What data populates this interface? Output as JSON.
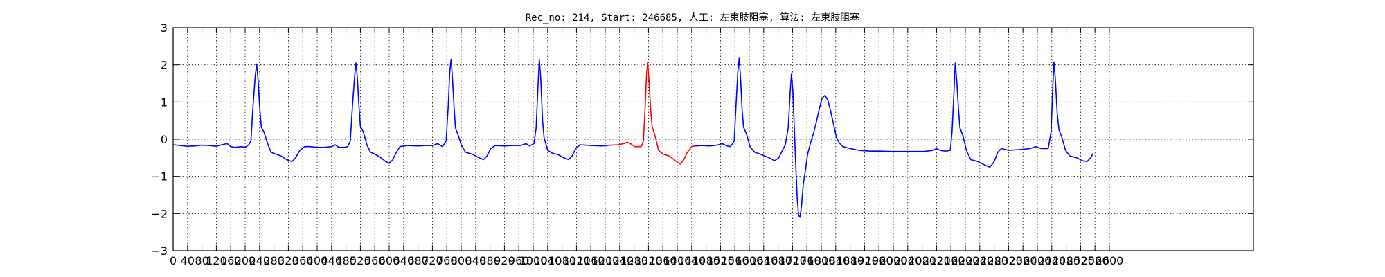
{
  "chart_data": {
    "type": "line",
    "title": "Rec_no: 214, Start: 246685, 人工: 左束肢阻塞, 算法: 左束肢阻塞",
    "xlabel": "",
    "ylabel": "",
    "xlim": [
      0,
      3000
    ],
    "ylim": [
      -3,
      3
    ],
    "grid": true,
    "x_ticks": [
      0,
      40,
      80,
      120,
      160,
      200,
      240,
      280,
      320,
      360,
      400,
      440,
      480,
      520,
      560,
      600,
      640,
      680,
      720,
      760,
      800,
      840,
      880,
      920,
      960,
      1000,
      1040,
      1080,
      1120,
      1160,
      1200,
      1240,
      1280,
      1320,
      1360,
      1400,
      1440,
      1480,
      1520,
      1560,
      1600,
      1640,
      1680,
      1720,
      1760,
      1800,
      1840,
      1880,
      1920,
      1960,
      2000,
      2040,
      2080,
      2120,
      2160,
      2200,
      2240,
      2280,
      2320,
      2360,
      2400,
      2440,
      2480,
      2520,
      2560,
      2600
    ],
    "y_ticks": [
      -3,
      -2,
      -1,
      0,
      1,
      2,
      3
    ],
    "y_tick_labels": [
      "−3",
      "−2",
      "−1",
      "0",
      "1",
      "2",
      "3"
    ],
    "series": [
      {
        "color": "#0000ff",
        "points": [
          [
            0,
            -0.15
          ],
          [
            20,
            -0.17
          ],
          [
            40,
            -0.19
          ],
          [
            60,
            -0.18
          ],
          [
            80,
            -0.16
          ],
          [
            100,
            -0.17
          ],
          [
            120,
            -0.19
          ],
          [
            135,
            -0.15
          ],
          [
            150,
            -0.12
          ],
          [
            160,
            -0.2
          ],
          [
            170,
            -0.22
          ],
          [
            180,
            -0.21
          ],
          [
            190,
            -0.2
          ],
          [
            200,
            -0.22
          ],
          [
            210,
            -0.15
          ],
          [
            216,
            -0.05
          ],
          [
            222,
            0.9
          ],
          [
            228,
            1.7
          ],
          [
            232,
            2.02
          ],
          [
            236,
            1.6
          ],
          [
            240,
            0.9
          ],
          [
            245,
            0.32
          ],
          [
            252,
            0.2
          ],
          [
            262,
            -0.1
          ],
          [
            272,
            -0.35
          ],
          [
            285,
            -0.4
          ],
          [
            300,
            -0.45
          ],
          [
            315,
            -0.55
          ],
          [
            330,
            -0.6
          ],
          [
            340,
            -0.5
          ],
          [
            352,
            -0.3
          ],
          [
            365,
            -0.2
          ],
          [
            380,
            -0.2
          ],
          [
            400,
            -0.22
          ],
          [
            420,
            -0.22
          ],
          [
            440,
            -0.2
          ],
          [
            450,
            -0.15
          ],
          [
            460,
            -0.22
          ],
          [
            475,
            -0.22
          ],
          [
            485,
            -0.2
          ],
          [
            492,
            -0.05
          ],
          [
            498,
            0.9
          ],
          [
            504,
            1.7
          ],
          [
            508,
            2.05
          ],
          [
            512,
            1.6
          ],
          [
            516,
            0.9
          ],
          [
            520,
            0.35
          ],
          [
            528,
            0.2
          ],
          [
            538,
            -0.15
          ],
          [
            548,
            -0.35
          ],
          [
            560,
            -0.4
          ],
          [
            575,
            -0.48
          ],
          [
            590,
            -0.6
          ],
          [
            600,
            -0.65
          ],
          [
            610,
            -0.55
          ],
          [
            620,
            -0.35
          ],
          [
            630,
            -0.2
          ],
          [
            650,
            -0.17
          ],
          [
            680,
            -0.18
          ],
          [
            700,
            -0.17
          ],
          [
            720,
            -0.17
          ],
          [
            735,
            -0.12
          ],
          [
            748,
            -0.2
          ],
          [
            758,
            -0.05
          ],
          [
            764,
            0.9
          ],
          [
            768,
            1.8
          ],
          [
            772,
            2.15
          ],
          [
            776,
            1.6
          ],
          [
            780,
            0.9
          ],
          [
            784,
            0.3
          ],
          [
            792,
            0.1
          ],
          [
            800,
            -0.15
          ],
          [
            812,
            -0.35
          ],
          [
            830,
            -0.4
          ],
          [
            850,
            -0.5
          ],
          [
            862,
            -0.55
          ],
          [
            872,
            -0.45
          ],
          [
            882,
            -0.25
          ],
          [
            895,
            -0.17
          ],
          [
            920,
            -0.18
          ],
          [
            945,
            -0.17
          ],
          [
            965,
            -0.17
          ],
          [
            980,
            -0.12
          ],
          [
            990,
            -0.18
          ],
          [
            1002,
            -0.12
          ],
          [
            1008,
            0.3
          ],
          [
            1013,
            1.4
          ],
          [
            1017,
            2.15
          ],
          [
            1021,
            1.6
          ],
          [
            1026,
            0.5
          ],
          [
            1030,
            0.05
          ],
          [
            1040,
            -0.3
          ],
          [
            1052,
            -0.37
          ],
          [
            1070,
            -0.42
          ],
          [
            1085,
            -0.5
          ],
          [
            1098,
            -0.55
          ],
          [
            1108,
            -0.45
          ],
          [
            1118,
            -0.25
          ],
          [
            1130,
            -0.15
          ],
          [
            1160,
            -0.17
          ],
          [
            1190,
            -0.18
          ],
          [
            1215,
            -0.16
          ]
        ]
      },
      {
        "color": "#ff0000",
        "points": [
          [
            1215,
            -0.16
          ],
          [
            1235,
            -0.15
          ],
          [
            1252,
            -0.12
          ],
          [
            1262,
            -0.08
          ],
          [
            1272,
            -0.13
          ],
          [
            1282,
            -0.2
          ],
          [
            1290,
            -0.2
          ],
          [
            1300,
            -0.2
          ],
          [
            1306,
            -0.05
          ],
          [
            1311,
            0.9
          ],
          [
            1315,
            1.8
          ],
          [
            1318,
            2.05
          ],
          [
            1322,
            1.5
          ],
          [
            1326,
            0.8
          ],
          [
            1330,
            0.35
          ],
          [
            1338,
            0.1
          ],
          [
            1348,
            -0.3
          ],
          [
            1360,
            -0.4
          ],
          [
            1378,
            -0.45
          ],
          [
            1395,
            -0.58
          ],
          [
            1408,
            -0.67
          ],
          [
            1418,
            -0.55
          ],
          [
            1428,
            -0.35
          ],
          [
            1440,
            -0.2
          ],
          [
            1450,
            -0.18
          ]
        ]
      },
      {
        "color": "#0000ff",
        "points": [
          [
            1450,
            -0.18
          ],
          [
            1470,
            -0.17
          ],
          [
            1490,
            -0.18
          ],
          [
            1510,
            -0.16
          ],
          [
            1525,
            -0.12
          ],
          [
            1538,
            -0.18
          ],
          [
            1548,
            -0.2
          ],
          [
            1558,
            -0.05
          ],
          [
            1563,
            0.9
          ],
          [
            1568,
            1.8
          ],
          [
            1572,
            2.18
          ],
          [
            1576,
            1.6
          ],
          [
            1580,
            0.8
          ],
          [
            1584,
            0.32
          ],
          [
            1592,
            0.15
          ],
          [
            1602,
            -0.2
          ],
          [
            1615,
            -0.35
          ],
          [
            1635,
            -0.42
          ],
          [
            1655,
            -0.5
          ],
          [
            1670,
            -0.58
          ],
          [
            1682,
            -0.5
          ],
          [
            1692,
            -0.3
          ],
          [
            1700,
            -0.15
          ],
          [
            1708,
            0.3
          ],
          [
            1713,
            1.2
          ],
          [
            1717,
            1.75
          ],
          [
            1721,
            1.3
          ],
          [
            1725,
            0.3
          ],
          [
            1729,
            -0.7
          ],
          [
            1733,
            -1.6
          ],
          [
            1737,
            -2.05
          ],
          [
            1741,
            -2.1
          ],
          [
            1745,
            -1.8
          ],
          [
            1750,
            -1.2
          ],
          [
            1755,
            -0.9
          ],
          [
            1762,
            -0.4
          ],
          [
            1770,
            -0.1
          ],
          [
            1778,
            0.15
          ],
          [
            1786,
            0.45
          ],
          [
            1794,
            0.8
          ],
          [
            1802,
            1.1
          ],
          [
            1810,
            1.18
          ],
          [
            1818,
            1.05
          ],
          [
            1826,
            0.75
          ],
          [
            1834,
            0.4
          ],
          [
            1842,
            0.05
          ],
          [
            1850,
            -0.1
          ],
          [
            1860,
            -0.2
          ],
          [
            1880,
            -0.25
          ],
          [
            1905,
            -0.3
          ],
          [
            1935,
            -0.32
          ],
          [
            1965,
            -0.32
          ],
          [
            1995,
            -0.33
          ],
          [
            2025,
            -0.33
          ],
          [
            2055,
            -0.33
          ],
          [
            2085,
            -0.33
          ],
          [
            2110,
            -0.3
          ],
          [
            2120,
            -0.25
          ],
          [
            2130,
            -0.3
          ],
          [
            2145,
            -0.32
          ],
          [
            2158,
            -0.3
          ],
          [
            2163,
            0.2
          ],
          [
            2168,
            1.2
          ],
          [
            2172,
            2.05
          ],
          [
            2176,
            1.6
          ],
          [
            2181,
            0.8
          ],
          [
            2185,
            0.3
          ],
          [
            2193,
            0.1
          ],
          [
            2203,
            -0.3
          ],
          [
            2215,
            -0.55
          ],
          [
            2235,
            -0.6
          ],
          [
            2255,
            -0.7
          ],
          [
            2268,
            -0.75
          ],
          [
            2280,
            -0.6
          ],
          [
            2290,
            -0.35
          ],
          [
            2300,
            -0.25
          ],
          [
            2320,
            -0.3
          ],
          [
            2350,
            -0.28
          ],
          [
            2380,
            -0.25
          ],
          [
            2395,
            -0.2
          ],
          [
            2410,
            -0.25
          ],
          [
            2430,
            -0.25
          ],
          [
            2438,
            0.2
          ],
          [
            2442,
            1.2
          ],
          [
            2446,
            2.08
          ],
          [
            2450,
            1.6
          ],
          [
            2455,
            0.7
          ],
          [
            2460,
            0.25
          ],
          [
            2468,
            0.05
          ],
          [
            2478,
            -0.3
          ],
          [
            2490,
            -0.45
          ],
          [
            2510,
            -0.5
          ],
          [
            2525,
            -0.58
          ],
          [
            2538,
            -0.6
          ],
          [
            2548,
            -0.5
          ],
          [
            2555,
            -0.38
          ]
        ]
      }
    ]
  }
}
